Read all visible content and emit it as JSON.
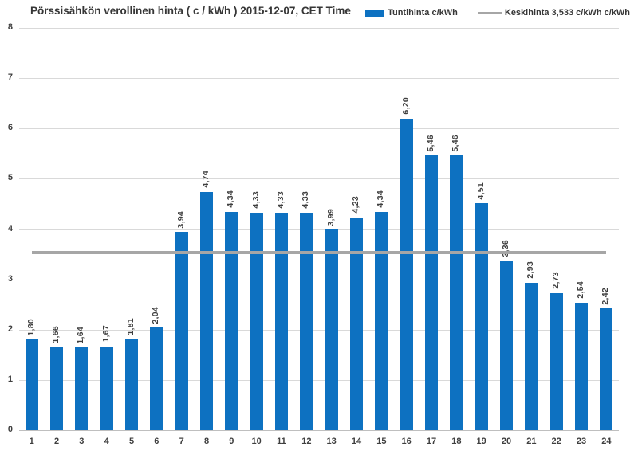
{
  "title": "Pörssisähkön verollinen hinta ( c / kWh ) 2015-12-07, CET Time",
  "legend": {
    "series_label": "Tuntihinta c/kWh",
    "average_label": "Keskihinta 3,533 c/kWh c/kWh"
  },
  "colors": {
    "bar": "#0d71c1",
    "average_line": "#a6a6a6",
    "gridline": "#d9d9d9",
    "axis_line": "#bfbfbf",
    "text": "#3f3f3f"
  },
  "chart_data": {
    "type": "bar",
    "title": "Pörssisähkön verollinen hinta ( c / kWh ) 2015-12-07, CET Time",
    "categories": [
      "1",
      "2",
      "3",
      "4",
      "5",
      "6",
      "7",
      "8",
      "9",
      "10",
      "11",
      "12",
      "13",
      "14",
      "15",
      "16",
      "17",
      "18",
      "19",
      "20",
      "21",
      "22",
      "23",
      "24"
    ],
    "values": [
      1.8,
      1.66,
      1.64,
      1.67,
      1.81,
      2.04,
      3.94,
      4.74,
      4.34,
      4.33,
      4.33,
      4.33,
      3.99,
      4.23,
      4.34,
      6.2,
      5.46,
      5.46,
      4.51,
      3.36,
      2.93,
      2.73,
      2.54,
      2.42
    ],
    "value_labels": [
      "1,80",
      "1,66",
      "1,64",
      "1,67",
      "1,81",
      "2,04",
      "3,94",
      "4,74",
      "4,34",
      "4,33",
      "4,33",
      "4,33",
      "3,99",
      "4,23",
      "4,34",
      "6,20",
      "5,46",
      "5,46",
      "4,51",
      "3,36",
      "2,93",
      "2,73",
      "2,54",
      "2,42"
    ],
    "average": 3.533,
    "series": [
      {
        "name": "Tuntihinta c/kWh",
        "values": [
          1.8,
          1.66,
          1.64,
          1.67,
          1.81,
          2.04,
          3.94,
          4.74,
          4.34,
          4.33,
          4.33,
          4.33,
          3.99,
          4.23,
          4.34,
          6.2,
          5.46,
          5.46,
          4.51,
          3.36,
          2.93,
          2.73,
          2.54,
          2.42
        ]
      },
      {
        "name": "Keskihinta 3,533 c/kWh c/kWh",
        "type": "line",
        "constant": 3.533
      }
    ],
    "xlabel": "",
    "ylabel": "",
    "ylim": [
      0,
      8
    ],
    "yticks": [
      0,
      1,
      2,
      3,
      4,
      5,
      6,
      7,
      8
    ],
    "grid": true,
    "legend_position": "top-right"
  }
}
